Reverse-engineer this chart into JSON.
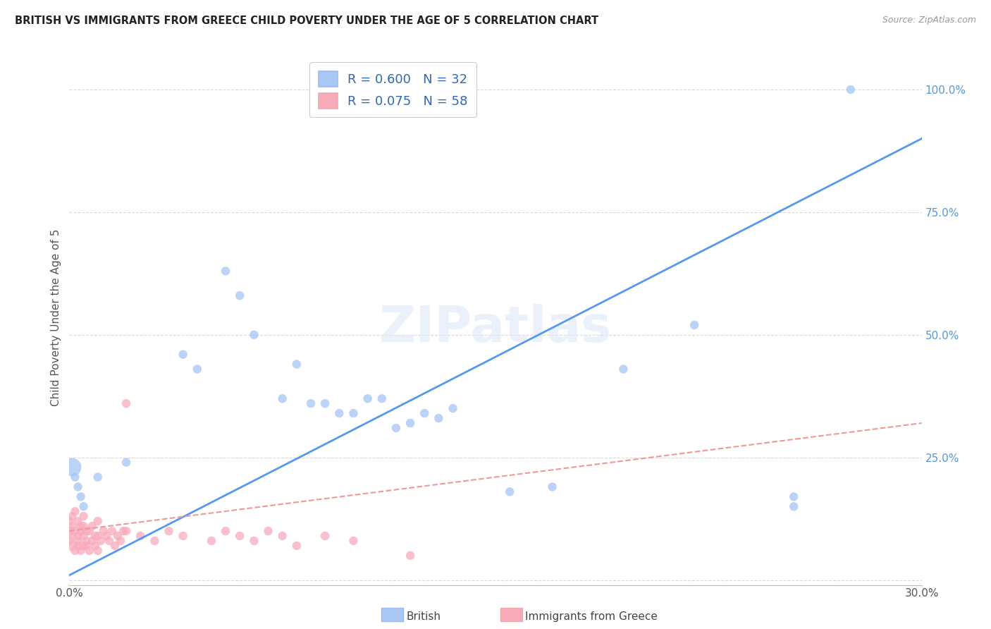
{
  "title": "BRITISH VS IMMIGRANTS FROM GREECE CHILD POVERTY UNDER THE AGE OF 5 CORRELATION CHART",
  "source": "Source: ZipAtlas.com",
  "ylabel": "Child Poverty Under the Age of 5",
  "xlim": [
    0,
    0.3
  ],
  "ylim": [
    -0.01,
    1.08
  ],
  "british_R": 0.6,
  "british_N": 32,
  "greece_R": 0.075,
  "greece_N": 58,
  "british_color": "#aac8f5",
  "greece_color": "#f8aabb",
  "british_line_color": "#5599ee",
  "greece_line_color": "#ee9999",
  "british_x": [
    0.001,
    0.002,
    0.003,
    0.004,
    0.005,
    0.01,
    0.02,
    0.04,
    0.045,
    0.055,
    0.06,
    0.065,
    0.075,
    0.08,
    0.085,
    0.09,
    0.095,
    0.1,
    0.105,
    0.11,
    0.115,
    0.12,
    0.125,
    0.13,
    0.135,
    0.155,
    0.17,
    0.195,
    0.22,
    0.255,
    0.255,
    0.275
  ],
  "british_y": [
    0.23,
    0.21,
    0.19,
    0.17,
    0.15,
    0.21,
    0.24,
    0.46,
    0.43,
    0.63,
    0.58,
    0.5,
    0.37,
    0.44,
    0.36,
    0.36,
    0.34,
    0.34,
    0.37,
    0.37,
    0.31,
    0.32,
    0.34,
    0.33,
    0.35,
    0.18,
    0.19,
    0.43,
    0.52,
    0.15,
    0.17,
    1.0
  ],
  "british_sizes": [
    350,
    80,
    80,
    80,
    80,
    80,
    80,
    80,
    80,
    80,
    80,
    80,
    80,
    80,
    80,
    80,
    80,
    80,
    80,
    80,
    80,
    80,
    80,
    80,
    80,
    80,
    80,
    80,
    80,
    80,
    80,
    80
  ],
  "greece_x": [
    0.0,
    0.0,
    0.0,
    0.001,
    0.001,
    0.001,
    0.001,
    0.002,
    0.002,
    0.002,
    0.003,
    0.003,
    0.003,
    0.003,
    0.004,
    0.004,
    0.004,
    0.005,
    0.005,
    0.005,
    0.005,
    0.006,
    0.006,
    0.006,
    0.007,
    0.007,
    0.008,
    0.008,
    0.009,
    0.009,
    0.01,
    0.01,
    0.01,
    0.011,
    0.012,
    0.013,
    0.014,
    0.015,
    0.016,
    0.017,
    0.018,
    0.019,
    0.02,
    0.02,
    0.025,
    0.03,
    0.035,
    0.04,
    0.05,
    0.055,
    0.06,
    0.065,
    0.07,
    0.075,
    0.08,
    0.09,
    0.1,
    0.12
  ],
  "greece_y": [
    0.08,
    0.1,
    0.12,
    0.07,
    0.09,
    0.11,
    0.13,
    0.06,
    0.1,
    0.14,
    0.07,
    0.09,
    0.12,
    0.08,
    0.11,
    0.06,
    0.1,
    0.07,
    0.09,
    0.11,
    0.13,
    0.07,
    0.1,
    0.08,
    0.06,
    0.1,
    0.08,
    0.11,
    0.07,
    0.09,
    0.06,
    0.09,
    0.12,
    0.08,
    0.1,
    0.09,
    0.08,
    0.1,
    0.07,
    0.09,
    0.08,
    0.1,
    0.36,
    0.1,
    0.09,
    0.08,
    0.1,
    0.09,
    0.08,
    0.1,
    0.09,
    0.08,
    0.1,
    0.09,
    0.07,
    0.09,
    0.08,
    0.05
  ],
  "greece_sizes": [
    80,
    80,
    80,
    120,
    80,
    80,
    80,
    80,
    80,
    80,
    80,
    80,
    80,
    80,
    80,
    80,
    80,
    80,
    80,
    80,
    80,
    80,
    80,
    80,
    80,
    80,
    80,
    80,
    80,
    80,
    80,
    80,
    80,
    80,
    80,
    80,
    80,
    80,
    80,
    80,
    80,
    80,
    80,
    80,
    80,
    80,
    80,
    80,
    80,
    80,
    80,
    80,
    80,
    80,
    80,
    80,
    80,
    80
  ],
  "brit_line_x0": 0.0,
  "brit_line_y0": 0.01,
  "brit_line_x1": 0.3,
  "brit_line_y1": 0.9,
  "greece_line_x0": 0.0,
  "greece_line_y0": 0.1,
  "greece_line_x1": 0.3,
  "greece_line_y1": 0.32,
  "watermark": "ZIPatlas",
  "background_color": "#ffffff",
  "grid_color": "#d8d8e8"
}
